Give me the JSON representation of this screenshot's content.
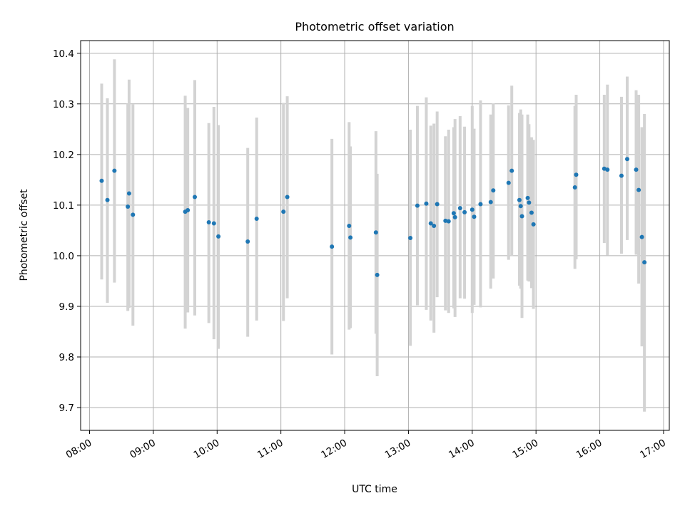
{
  "chart_data": {
    "type": "scatter",
    "title": "Photometric offset variation",
    "xlabel": "UTC time",
    "ylabel": "Photometric offset",
    "grid": true,
    "colors": {
      "point": "#1f77b4",
      "errorbar": "#d3d3d3",
      "grid": "#b0b0b0"
    },
    "x_unit": "hours UTC (decimal)",
    "xlim": [
      7.86,
      17.09
    ],
    "ylim": [
      9.655,
      10.425
    ],
    "xticks": [
      {
        "value": 8,
        "label": "08:00"
      },
      {
        "value": 9,
        "label": "09:00"
      },
      {
        "value": 10,
        "label": "10:00"
      },
      {
        "value": 11,
        "label": "11:00"
      },
      {
        "value": 12,
        "label": "12:00"
      },
      {
        "value": 13,
        "label": "13:00"
      },
      {
        "value": 14,
        "label": "14:00"
      },
      {
        "value": 15,
        "label": "15:00"
      },
      {
        "value": 16,
        "label": "16:00"
      },
      {
        "value": 17,
        "label": "17:00"
      }
    ],
    "yticks": [
      {
        "value": 9.7,
        "label": "9.7"
      },
      {
        "value": 9.8,
        "label": "9.8"
      },
      {
        "value": 9.9,
        "label": "9.9"
      },
      {
        "value": 10.0,
        "label": "10.0"
      },
      {
        "value": 10.1,
        "label": "10.1"
      },
      {
        "value": 10.2,
        "label": "10.2"
      },
      {
        "value": 10.3,
        "label": "10.3"
      },
      {
        "value": 10.4,
        "label": "10.4"
      }
    ],
    "points": [
      {
        "x": 8.19,
        "y": 10.148,
        "lo": 9.953,
        "hi": 10.34
      },
      {
        "x": 8.28,
        "y": 10.11,
        "lo": 9.907,
        "hi": 10.311
      },
      {
        "x": 8.39,
        "y": 10.168,
        "lo": 9.947,
        "hi": 10.388
      },
      {
        "x": 8.6,
        "y": 10.097,
        "lo": 9.891,
        "hi": 10.3
      },
      {
        "x": 8.62,
        "y": 10.123,
        "lo": 9.897,
        "hi": 10.348
      },
      {
        "x": 8.68,
        "y": 10.081,
        "lo": 9.862,
        "hi": 10.299
      },
      {
        "x": 9.5,
        "y": 10.087,
        "lo": 9.856,
        "hi": 10.316
      },
      {
        "x": 9.54,
        "y": 10.09,
        "lo": 9.888,
        "hi": 10.292
      },
      {
        "x": 9.65,
        "y": 10.116,
        "lo": 9.882,
        "hi": 10.347
      },
      {
        "x": 9.87,
        "y": 10.066,
        "lo": 9.867,
        "hi": 10.262
      },
      {
        "x": 9.95,
        "y": 10.064,
        "lo": 9.835,
        "hi": 10.294
      },
      {
        "x": 10.02,
        "y": 10.038,
        "lo": 9.816,
        "hi": 10.258
      },
      {
        "x": 10.48,
        "y": 10.028,
        "lo": 9.84,
        "hi": 10.213
      },
      {
        "x": 10.62,
        "y": 10.073,
        "lo": 9.872,
        "hi": 10.273
      },
      {
        "x": 11.04,
        "y": 10.087,
        "lo": 9.871,
        "hi": 10.302
      },
      {
        "x": 11.1,
        "y": 10.116,
        "lo": 9.916,
        "hi": 10.315
      },
      {
        "x": 11.8,
        "y": 10.018,
        "lo": 9.805,
        "hi": 10.231
      },
      {
        "x": 12.07,
        "y": 10.059,
        "lo": 9.854,
        "hi": 10.264
      },
      {
        "x": 12.09,
        "y": 10.036,
        "lo": 9.857,
        "hi": 10.216
      },
      {
        "x": 12.49,
        "y": 10.046,
        "lo": 9.846,
        "hi": 10.246
      },
      {
        "x": 12.51,
        "y": 9.962,
        "lo": 9.762,
        "hi": 10.162
      },
      {
        "x": 13.03,
        "y": 10.035,
        "lo": 9.822,
        "hi": 10.249
      },
      {
        "x": 13.14,
        "y": 10.099,
        "lo": 9.902,
        "hi": 10.296
      },
      {
        "x": 13.28,
        "y": 10.103,
        "lo": 9.893,
        "hi": 10.313
      },
      {
        "x": 13.35,
        "y": 10.064,
        "lo": 9.872,
        "hi": 10.257
      },
      {
        "x": 13.4,
        "y": 10.059,
        "lo": 9.848,
        "hi": 10.261
      },
      {
        "x": 13.45,
        "y": 10.102,
        "lo": 9.918,
        "hi": 10.285
      },
      {
        "x": 13.58,
        "y": 10.069,
        "lo": 9.892,
        "hi": 10.236
      },
      {
        "x": 13.63,
        "y": 10.068,
        "lo": 9.887,
        "hi": 10.249
      },
      {
        "x": 13.71,
        "y": 10.084,
        "lo": 9.896,
        "hi": 10.254
      },
      {
        "x": 13.73,
        "y": 10.076,
        "lo": 9.879,
        "hi": 10.27
      },
      {
        "x": 13.81,
        "y": 10.094,
        "lo": 9.916,
        "hi": 10.276
      },
      {
        "x": 13.88,
        "y": 10.086,
        "lo": 9.915,
        "hi": 10.255
      },
      {
        "x": 14.0,
        "y": 10.091,
        "lo": 9.887,
        "hi": 10.296
      },
      {
        "x": 14.03,
        "y": 10.077,
        "lo": 9.903,
        "hi": 10.251
      },
      {
        "x": 14.13,
        "y": 10.102,
        "lo": 9.898,
        "hi": 10.307
      },
      {
        "x": 14.29,
        "y": 10.106,
        "lo": 9.935,
        "hi": 10.279
      },
      {
        "x": 14.33,
        "y": 10.129,
        "lo": 9.955,
        "hi": 10.301
      },
      {
        "x": 14.57,
        "y": 10.144,
        "lo": 9.992,
        "hi": 10.297
      },
      {
        "x": 14.62,
        "y": 10.168,
        "lo": 9.999,
        "hi": 10.336
      },
      {
        "x": 14.74,
        "y": 10.11,
        "lo": 9.941,
        "hi": 10.282
      },
      {
        "x": 14.76,
        "y": 10.098,
        "lo": 9.935,
        "hi": 10.289
      },
      {
        "x": 14.78,
        "y": 10.078,
        "lo": 9.877,
        "hi": 10.279
      },
      {
        "x": 14.87,
        "y": 10.114,
        "lo": 9.951,
        "hi": 10.279
      },
      {
        "x": 14.89,
        "y": 10.105,
        "lo": 9.949,
        "hi": 10.26
      },
      {
        "x": 14.93,
        "y": 10.085,
        "lo": 9.936,
        "hi": 10.234
      },
      {
        "x": 14.96,
        "y": 10.062,
        "lo": 9.895,
        "hi": 10.229
      },
      {
        "x": 15.61,
        "y": 10.135,
        "lo": 9.974,
        "hi": 10.296
      },
      {
        "x": 15.63,
        "y": 10.16,
        "lo": 9.993,
        "hi": 10.318
      },
      {
        "x": 16.07,
        "y": 10.172,
        "lo": 10.025,
        "hi": 10.318
      },
      {
        "x": 16.12,
        "y": 10.17,
        "lo": 10.001,
        "hi": 10.338
      },
      {
        "x": 16.34,
        "y": 10.158,
        "lo": 10.004,
        "hi": 10.314
      },
      {
        "x": 16.43,
        "y": 10.191,
        "lo": 10.031,
        "hi": 10.354
      },
      {
        "x": 16.57,
        "y": 10.17,
        "lo": 10.002,
        "hi": 10.327
      },
      {
        "x": 16.61,
        "y": 10.13,
        "lo": 9.945,
        "hi": 10.318
      },
      {
        "x": 16.66,
        "y": 10.037,
        "lo": 9.821,
        "hi": 10.254
      },
      {
        "x": 16.7,
        "y": 9.987,
        "lo": 9.692,
        "hi": 10.28
      }
    ]
  }
}
